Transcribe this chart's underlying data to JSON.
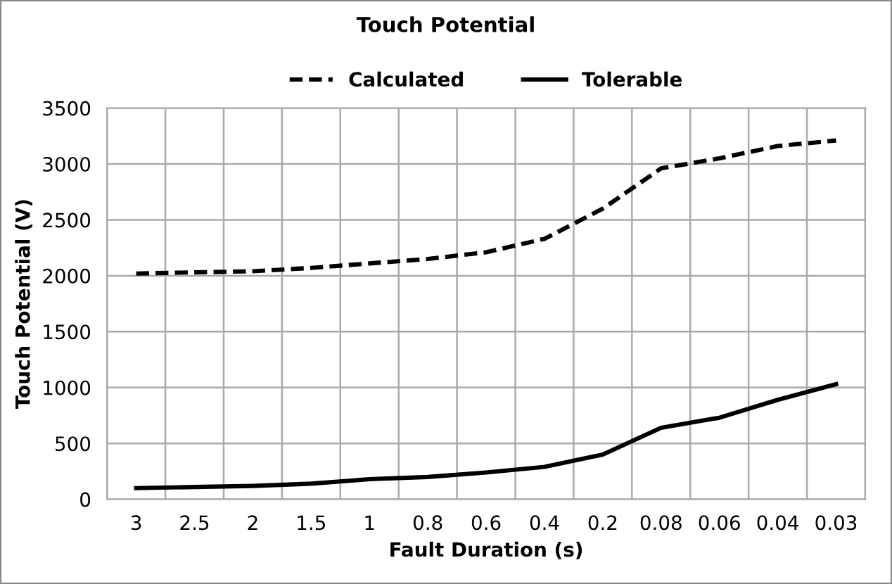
{
  "chart_data": {
    "type": "line",
    "title": "Touch Potential",
    "xlabel": "Fault Duration (s)",
    "ylabel": "Touch Potential (V)",
    "categories": [
      "3",
      "2.5",
      "2",
      "1.5",
      "1",
      "0.8",
      "0.6",
      "0.4",
      "0.2",
      "0.08",
      "0.06",
      "0.04",
      "0.03"
    ],
    "series": [
      {
        "name": "Calculated",
        "color": "#000000",
        "line_style": "dashed",
        "values": [
          2020,
          2030,
          2040,
          2070,
          2110,
          2150,
          2210,
          2330,
          2600,
          2960,
          3050,
          3160,
          3210
        ]
      },
      {
        "name": "Tolerable",
        "color": "#000000",
        "line_style": "solid",
        "values": [
          100,
          110,
          120,
          140,
          180,
          200,
          240,
          290,
          400,
          640,
          730,
          890,
          1030
        ]
      }
    ],
    "ylim": [
      0,
      3500
    ],
    "yticks": [
      0,
      500,
      1000,
      1500,
      2000,
      2500,
      3000,
      3500
    ],
    "grid": true,
    "legend": "top",
    "marker": "none"
  }
}
